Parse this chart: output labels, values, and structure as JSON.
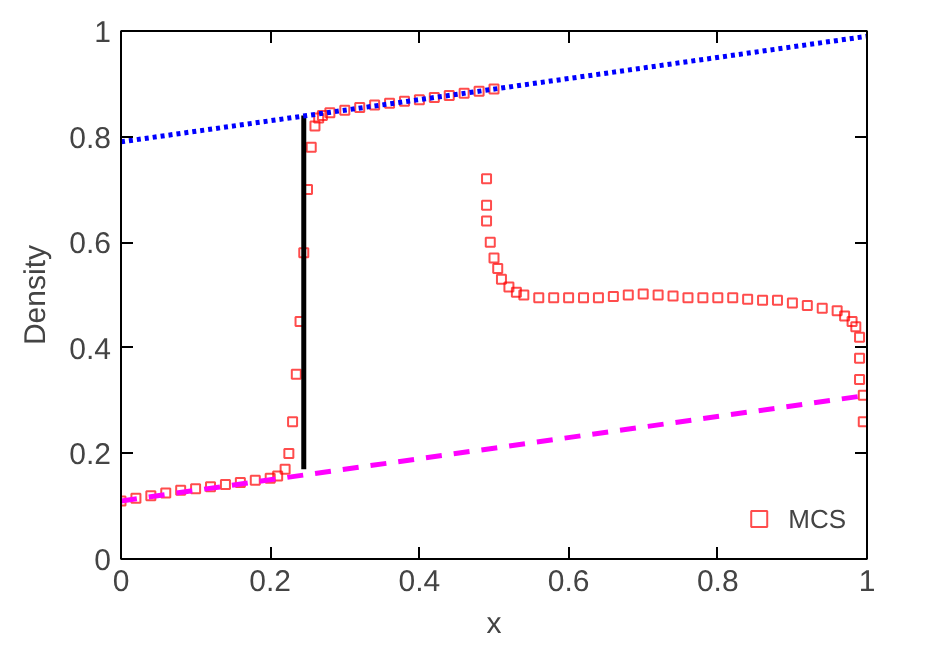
{
  "chart_data": {
    "type": "scatter",
    "xlabel": "x",
    "ylabel": "Density",
    "xlim": [
      0,
      1
    ],
    "ylim": [
      0,
      1
    ],
    "xticks": [
      0,
      0.2,
      0.4,
      0.6,
      0.8,
      1
    ],
    "yticks": [
      0,
      0.2,
      0.4,
      0.6,
      0.8,
      1
    ],
    "grid": false,
    "legend": "bottom right",
    "series": [
      {
        "name": "MCS",
        "marker": "square",
        "color": "#ff0000",
        "x": [
          0,
          0.02,
          0.04,
          0.06,
          0.08,
          0.1,
          0.12,
          0.14,
          0.16,
          0.18,
          0.2,
          0.21,
          0.22,
          0.225,
          0.23,
          0.235,
          0.24,
          0.245,
          0.25,
          0.255,
          0.26,
          0.265,
          0.27,
          0.28,
          0.3,
          0.32,
          0.34,
          0.36,
          0.38,
          0.4,
          0.42,
          0.44,
          0.46,
          0.48,
          0.5,
          0.49,
          0.49,
          0.49,
          0.495,
          0.5,
          0.505,
          0.51,
          0.52,
          0.53,
          0.54,
          0.56,
          0.58,
          0.6,
          0.62,
          0.64,
          0.66,
          0.68,
          0.7,
          0.72,
          0.74,
          0.76,
          0.78,
          0.8,
          0.82,
          0.84,
          0.86,
          0.88,
          0.9,
          0.92,
          0.94,
          0.96,
          0.97,
          0.98,
          0.985,
          0.99,
          0.99,
          0.99,
          0.995,
          0.995
        ],
        "values": [
          0.11,
          0.115,
          0.12,
          0.125,
          0.13,
          0.133,
          0.137,
          0.141,
          0.145,
          0.149,
          0.153,
          0.157,
          0.17,
          0.2,
          0.26,
          0.35,
          0.45,
          0.58,
          0.7,
          0.78,
          0.82,
          0.835,
          0.84,
          0.845,
          0.85,
          0.855,
          0.86,
          0.863,
          0.867,
          0.87,
          0.874,
          0.878,
          0.882,
          0.886,
          0.89,
          0.72,
          0.67,
          0.64,
          0.6,
          0.57,
          0.55,
          0.53,
          0.515,
          0.505,
          0.5,
          0.495,
          0.495,
          0.495,
          0.495,
          0.495,
          0.497,
          0.5,
          0.502,
          0.5,
          0.498,
          0.495,
          0.495,
          0.495,
          0.495,
          0.492,
          0.49,
          0.49,
          0.485,
          0.48,
          0.475,
          0.47,
          0.46,
          0.45,
          0.44,
          0.42,
          0.38,
          0.34,
          0.31,
          0.26
        ]
      },
      {
        "type": "line",
        "color": "#000000",
        "line_style": "solid",
        "x": [
          0.245,
          0.245
        ],
        "values": [
          0.17,
          0.84
        ]
      },
      {
        "type": "line",
        "color": "#0000ff",
        "line_style": "dotted",
        "x": [
          0,
          1
        ],
        "values": [
          0.79,
          0.99
        ]
      },
      {
        "type": "line",
        "color": "#ff00ff",
        "line_style": "dashed",
        "x": [
          0,
          1
        ],
        "values": [
          0.11,
          0.31
        ]
      }
    ]
  }
}
